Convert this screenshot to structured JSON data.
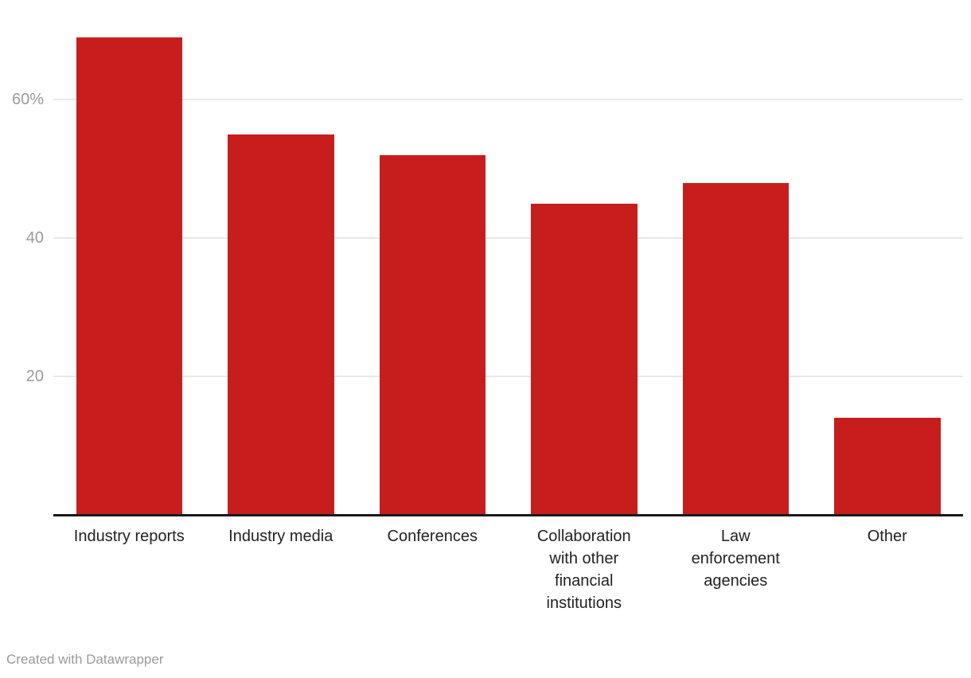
{
  "chart_data": {
    "type": "bar",
    "title": "",
    "xlabel": "",
    "ylabel": "",
    "categories": [
      "Industry reports",
      "Industry media",
      "Conferences",
      "Collaboration with other financial institutions",
      "Law enforcement agencies",
      "Other"
    ],
    "category_display_lines": [
      "Industry reports",
      "Industry media",
      "Conferences",
      "Collaboration\nwith other\nfinancial\ninstitutions",
      "Law\nenforcement\nagencies",
      "Other"
    ],
    "values": [
      69,
      55,
      52,
      45,
      48,
      14
    ],
    "unit": "%",
    "ylim": [
      0,
      74.4
    ],
    "yticks": [
      {
        "value": 20,
        "label": "20"
      },
      {
        "value": 40,
        "label": "40"
      },
      {
        "value": 60,
        "label": "60%"
      }
    ],
    "grid": true,
    "legend": "none",
    "bar_color": "#c71e1d"
  },
  "colors": {
    "bar": "#c71e1d",
    "gridline": "#e8e8e8",
    "axis_line": "#1a1a1a",
    "tick_text": "#9b9b9b",
    "category_text": "#222222",
    "credit_text": "#9a9a9a",
    "background": "#ffffff"
  },
  "footer": {
    "credit": "Created with Datawrapper"
  }
}
